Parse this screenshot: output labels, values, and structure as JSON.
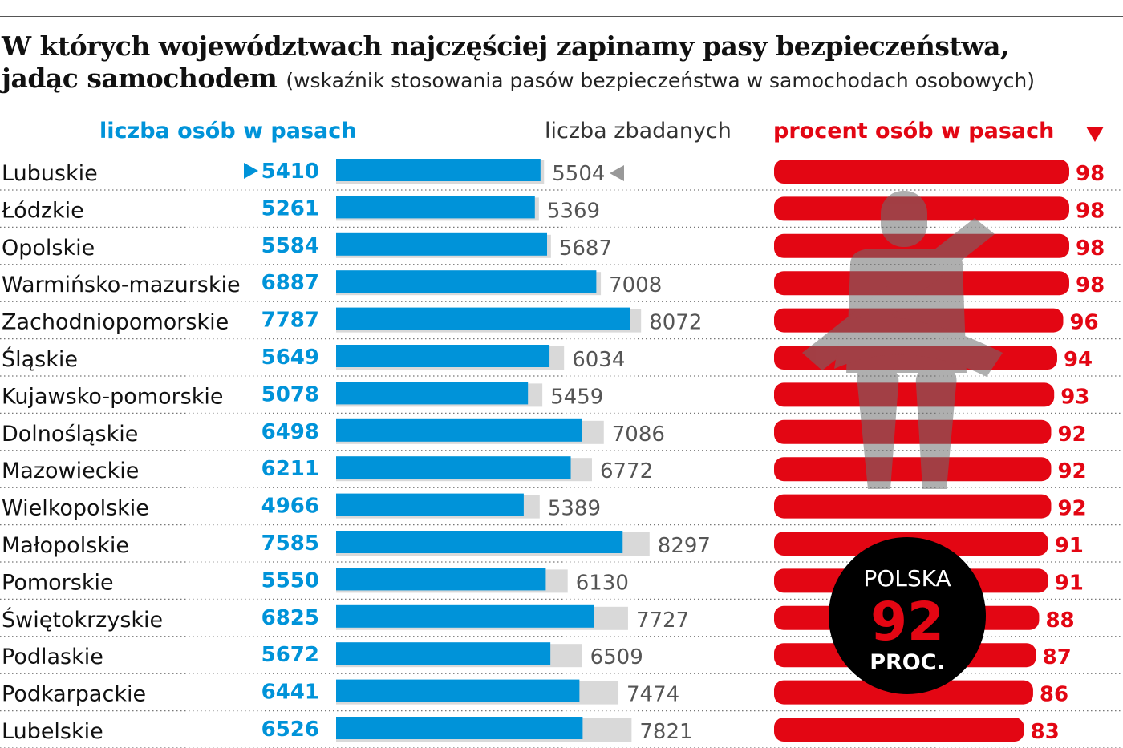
{
  "title_line1": "W których województwach najczęściej zapinamy pasy bezpieczeństwa,",
  "title_line2": "jadąc samochodem",
  "subtitle": "(wskaźnik stosowania pasów bezpieczeństwa w samochodach osobowych)",
  "colors": {
    "blue": "#0093d9",
    "gray": "#d9d9d9",
    "red": "#e30613",
    "silhouette": "#6e6e6e",
    "badge": "#000000"
  },
  "chart_data": {
    "type": "bar",
    "orientation": "horizontal",
    "headers": {
      "belted": "liczba osób w pasach",
      "surveyed": "liczba zbadanych",
      "percent": "procent osób w pasach"
    },
    "sort_indicator": "triangle-down-icon",
    "categories": [
      "Lubuskie",
      "Łódzkie",
      "Opolskie",
      "Warmińsko-mazurskie",
      "Zachodniopomorskie",
      "Śląskie",
      "Kujawsko-pomorskie",
      "Dolnośląskie",
      "Mazowieckie",
      "Wielkopolskie",
      "Małopolskie",
      "Pomorskie",
      "Świętokrzyskie",
      "Podlaskie",
      "Podkarpackie",
      "Lubelskie"
    ],
    "series": [
      {
        "name": "liczba osób w pasach",
        "values": [
          5410,
          5261,
          5584,
          6887,
          7787,
          5649,
          5078,
          6498,
          6211,
          4966,
          7585,
          5550,
          6825,
          5672,
          6441,
          6526
        ]
      },
      {
        "name": "liczba zbadanych",
        "values": [
          5504,
          5369,
          5687,
          7008,
          8072,
          6034,
          5459,
          7086,
          6772,
          5389,
          8297,
          6130,
          7727,
          6509,
          7474,
          7821
        ]
      },
      {
        "name": "procent osób w pasach",
        "values": [
          98,
          98,
          98,
          98,
          96,
          94,
          93,
          92,
          92,
          92,
          91,
          91,
          88,
          87,
          86,
          83
        ]
      }
    ],
    "badge": {
      "top": "POLSKA",
      "value": "92",
      "bottom": "PROC."
    }
  }
}
